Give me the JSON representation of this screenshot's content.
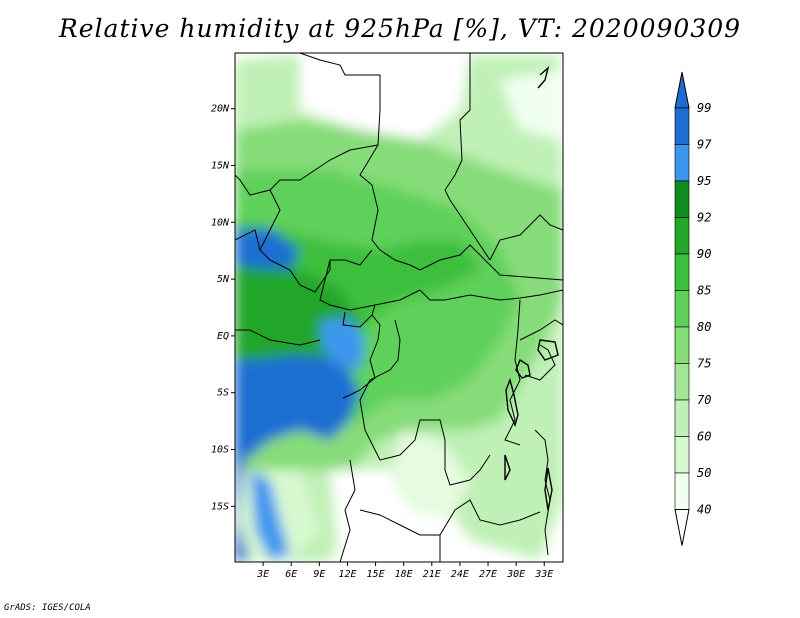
{
  "title": "Relative humidity at 925hPa [%], VT: 2020090309",
  "credit": "GrADS: IGES/COLA",
  "map": {
    "lat_labels": [
      "20N",
      "15N",
      "10N",
      "5N",
      "EQ",
      "5S",
      "10S",
      "15S"
    ],
    "lon_labels": [
      "3E",
      "6E",
      "9E",
      "12E",
      "15E",
      "18E",
      "21E",
      "24E",
      "27E",
      "30E",
      "33E"
    ],
    "lat_values": [
      20,
      15,
      10,
      5,
      0,
      -5,
      -10,
      -15
    ],
    "lon_values": [
      3,
      6,
      9,
      12,
      15,
      18,
      21,
      24,
      27,
      30,
      33
    ]
  },
  "colorbar": {
    "labels": [
      "99",
      "97",
      "95",
      "92",
      "90",
      "85",
      "80",
      "75",
      "70",
      "60",
      "50",
      "40"
    ],
    "bins": [
      {
        "from": "40",
        "to": "50",
        "color": "#f0fff0"
      },
      {
        "from": "50",
        "to": "60",
        "color": "#d7f9d0"
      },
      {
        "from": "60",
        "to": "70",
        "color": "#bff0b5"
      },
      {
        "from": "70",
        "to": "75",
        "color": "#a3e596"
      },
      {
        "from": "75",
        "to": "80",
        "color": "#86dc79"
      },
      {
        "from": "80",
        "to": "85",
        "color": "#5fd05a"
      },
      {
        "from": "85",
        "to": "90",
        "color": "#3cbf3c"
      },
      {
        "from": "90",
        "to": "92",
        "color": "#24a62a"
      },
      {
        "from": "92",
        "to": "95",
        "color": "#108c1e"
      },
      {
        "from": "95",
        "to": "97",
        "color": "#3c96f0"
      },
      {
        "from": "97",
        "to": "99",
        "color": "#1e6ed2"
      }
    ],
    "below_color": "#ffffff",
    "above_color": "#1e6ed2"
  }
}
